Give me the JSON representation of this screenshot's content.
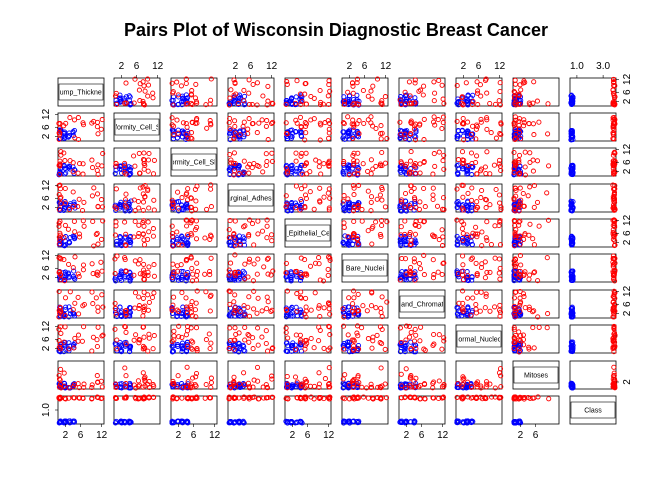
{
  "chart_data": {
    "type": "scatter",
    "subtype": "pairs-matrix",
    "title": "Pairs Plot of Wisconsin Diagnostic Breast Cancer",
    "variables": [
      {
        "label": "Clump_Thickness",
        "range": [
          1,
          10
        ]
      },
      {
        "label": "Uniformity_Cell_Size",
        "range": [
          1,
          10
        ]
      },
      {
        "label": "Uniformity_Cell_Shape",
        "range": [
          1,
          10
        ]
      },
      {
        "label": "Marginal_Adhesion",
        "range": [
          1,
          10
        ]
      },
      {
        "label": "Single_Epithelial_Cell_Size",
        "range": [
          1,
          10
        ]
      },
      {
        "label": "Bare_Nuclei",
        "range": [
          1,
          10
        ]
      },
      {
        "label": "Bland_Chromatin",
        "range": [
          1,
          10
        ]
      },
      {
        "label": "Normal_Nucleoli",
        "range": [
          1,
          10
        ]
      },
      {
        "label": "Mitoses",
        "range": [
          1,
          10
        ]
      },
      {
        "label": "Class",
        "range": [
          1,
          3
        ]
      }
    ],
    "axis_ticks": {
      "ordinal": [
        "2",
        "6",
        "12"
      ],
      "mitoses": [
        "2",
        "6"
      ],
      "class": [
        "1.0",
        "3.0"
      ]
    },
    "groups": [
      {
        "class": 1,
        "color": "#0000ff"
      },
      {
        "class": 3,
        "color": "#ff0000"
      }
    ],
    "grid": false,
    "legend": "none"
  }
}
